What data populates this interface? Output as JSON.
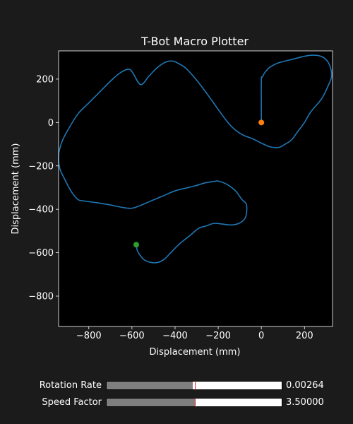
{
  "figure": {
    "background": "#1b1b1b",
    "axes_background": "#000000",
    "text_color": "#ffffff"
  },
  "chart_data": {
    "type": "line",
    "title": "T-Bot Macro Plotter",
    "xlabel": "Displacement (mm)",
    "ylabel": "Displacement (mm)",
    "xlim": [
      -940,
      330
    ],
    "ylim": [
      -940,
      330
    ],
    "xticks": [
      -800,
      -600,
      -400,
      -200,
      0,
      200
    ],
    "yticks": [
      200,
      0,
      -200,
      -400,
      -600,
      -800
    ],
    "xtick_labels": [
      "−800",
      "−600",
      "−400",
      "−200",
      "0",
      "200"
    ],
    "ytick_labels": [
      "200",
      "0",
      "−200",
      "−400",
      "−600",
      "−800"
    ],
    "grid": false,
    "series": [
      {
        "color": "#1f77b4",
        "x": [
          0,
          0,
          5,
          20,
          40,
          80,
          140,
          190,
          230,
          270,
          300,
          320,
          325,
          310,
          280,
          230,
          200,
          170,
          140,
          110,
          80,
          40,
          0,
          -40,
          -80,
          -120,
          -155,
          -200,
          -250,
          -300,
          -350,
          -390,
          -410,
          -440,
          -480,
          -520,
          -560,
          -600,
          -620,
          -660,
          -700,
          -750,
          -800,
          -850,
          -900,
          -925,
          -940,
          -935,
          -910,
          -880,
          -850,
          -820,
          -760,
          -700,
          -640,
          -600,
          -560,
          -520,
          -460,
          -400,
          -340,
          -300,
          -260,
          -220,
          -200,
          -160,
          -120,
          -90,
          -70,
          -68,
          -75,
          -95,
          -120,
          -150,
          -180,
          -220,
          -260,
          -290,
          -330,
          -380,
          -420,
          -450,
          -480,
          -510,
          -540,
          -560,
          -575,
          -580
        ],
        "y": [
          0,
          190,
          210,
          235,
          255,
          275,
          290,
          303,
          310,
          307,
          290,
          255,
          210,
          170,
          110,
          50,
          0,
          -40,
          -80,
          -100,
          -115,
          -112,
          -95,
          -75,
          -60,
          -35,
          0,
          60,
          130,
          195,
          250,
          275,
          283,
          280,
          255,
          215,
          175,
          235,
          245,
          225,
          190,
          140,
          90,
          40,
          -40,
          -90,
          -150,
          -210,
          -265,
          -320,
          -355,
          -362,
          -370,
          -380,
          -392,
          -395,
          -382,
          -365,
          -340,
          -315,
          -300,
          -290,
          -278,
          -272,
          -270,
          -285,
          -315,
          -355,
          -375,
          -410,
          -440,
          -460,
          -470,
          -472,
          -468,
          -465,
          -478,
          -487,
          -520,
          -560,
          -600,
          -630,
          -645,
          -645,
          -635,
          -615,
          -590,
          -563
        ]
      }
    ],
    "markers": [
      {
        "x": 0,
        "y": 0,
        "color": "#ff7f0e"
      },
      {
        "x": -580,
        "y": -563,
        "color": "#2ca02c"
      }
    ]
  },
  "sliders": [
    {
      "label": "Rotation Rate",
      "value_text": "0.00264",
      "fill_fraction": 0.49,
      "init_fraction": 0.505
    },
    {
      "label": "Speed Factor",
      "value_text": "3.50000",
      "fill_fraction": 0.505,
      "init_fraction": 0.505
    }
  ]
}
